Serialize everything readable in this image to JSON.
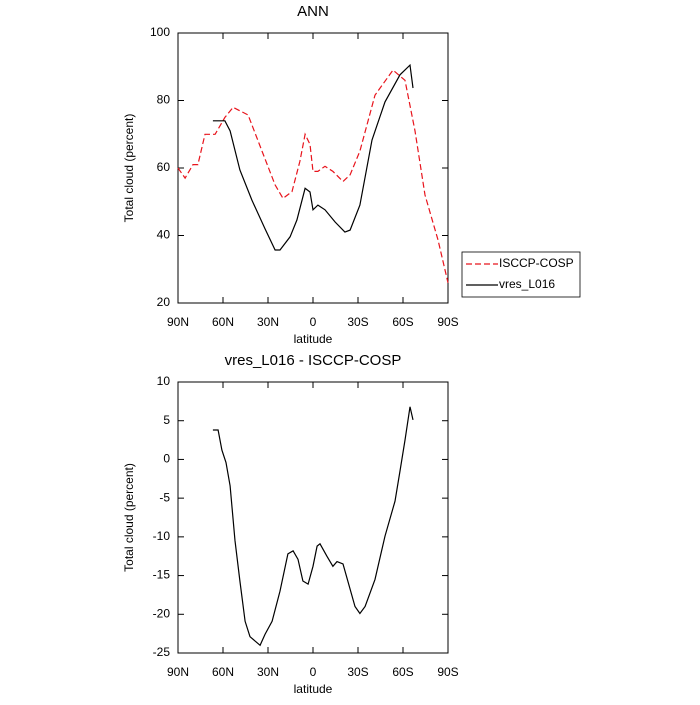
{
  "chart_data": [
    {
      "type": "line",
      "title": "ANN",
      "xlabel": "latitude",
      "ylabel": "Total cloud (percent)",
      "xlim": [
        90,
        -90
      ],
      "ylim": [
        20,
        100
      ],
      "xticks": [
        {
          "value": 90,
          "label": "90N"
        },
        {
          "value": 60,
          "label": "60N"
        },
        {
          "value": 30,
          "label": "30N"
        },
        0,
        {
          "value": -30,
          "label": "30S"
        },
        {
          "value": -60,
          "label": "60S"
        },
        {
          "value": -90,
          "label": "90S"
        }
      ],
      "yticks": [
        20,
        40,
        60,
        80,
        100
      ],
      "legend": "right",
      "series": [
        {
          "name": "ISCCP-COSP",
          "color": "#e8141c",
          "dashed": true,
          "x": [
            90,
            85.3,
            80,
            76.7,
            72,
            65.3,
            58.7,
            53.3,
            43.3,
            34,
            25.3,
            20,
            14,
            8.7,
            5.3,
            2,
            0,
            -3.3,
            -8,
            -13.3,
            -20,
            -24.7,
            -31.3,
            -41.3,
            -53.3,
            -61.3,
            -68,
            -74.7,
            -83.3,
            -90
          ],
          "values": [
            60,
            57,
            61,
            61,
            70,
            70,
            75,
            78,
            75.7,
            65,
            55,
            51,
            53,
            62,
            70,
            67,
            59,
            59,
            60.5,
            59,
            56,
            58,
            65,
            81.6,
            89,
            86,
            71,
            52,
            38.7,
            26
          ]
        },
        {
          "name": "vres_L016",
          "color": "#000000",
          "dashed": false,
          "x": [
            66.7,
            58.7,
            55.3,
            48.7,
            40.7,
            32,
            25.3,
            22,
            15.3,
            10.7,
            5.3,
            2,
            0,
            -3.3,
            -8,
            -14.7,
            -21.3,
            -24.7,
            -31.3,
            -39.3,
            -48,
            -58,
            -64.7,
            -66.7
          ],
          "values": [
            74,
            74,
            71,
            59.4,
            50.5,
            42,
            35.7,
            35.7,
            39.6,
            44.6,
            54,
            52.9,
            47.6,
            49,
            47.6,
            44,
            41,
            41.6,
            49,
            68.3,
            79.6,
            87.6,
            90.5,
            83.7
          ]
        }
      ]
    },
    {
      "type": "line",
      "title": "vres_L016 - ISCCP-COSP",
      "xlabel": "latitude",
      "ylabel": "Total cloud (percent)",
      "xlim": [
        90,
        -90
      ],
      "ylim": [
        -25,
        10
      ],
      "xticks": [
        {
          "value": 90,
          "label": "90N"
        },
        {
          "value": 60,
          "label": "60N"
        },
        {
          "value": 30,
          "label": "30N"
        },
        0,
        {
          "value": -30,
          "label": "30S"
        },
        {
          "value": -60,
          "label": "60S"
        },
        {
          "value": -90,
          "label": "90S"
        }
      ],
      "yticks": [
        -25,
        -20,
        -15,
        -10,
        -5,
        0,
        5,
        10
      ],
      "color": "#000000",
      "x": [
        66.7,
        63.3,
        60.7,
        58,
        55.3,
        52,
        48.7,
        45.3,
        42,
        35.3,
        32,
        27.3,
        22,
        16.7,
        13.3,
        10,
        6.7,
        3.3,
        0,
        -2.7,
        -4.7,
        -9.3,
        -13.3,
        -16,
        -20,
        -28,
        -31.3,
        -34.7,
        -41.3,
        -48,
        -54.7,
        -58,
        -61.3,
        -64.7,
        -66.7
      ],
      "values": [
        3.8,
        3.8,
        1.2,
        -0.4,
        -3.4,
        -10.5,
        -15.7,
        -20.9,
        -22.9,
        -24,
        -22.6,
        -20.9,
        -17,
        -12.2,
        -11.8,
        -12.9,
        -15.7,
        -16.1,
        -13.8,
        -11.2,
        -10.9,
        -12.5,
        -13.8,
        -13.2,
        -13.5,
        -19,
        -19.9,
        -19,
        -15.5,
        -9.9,
        -5.4,
        -1.5,
        2.5,
        6.8,
        5.1
      ]
    }
  ]
}
